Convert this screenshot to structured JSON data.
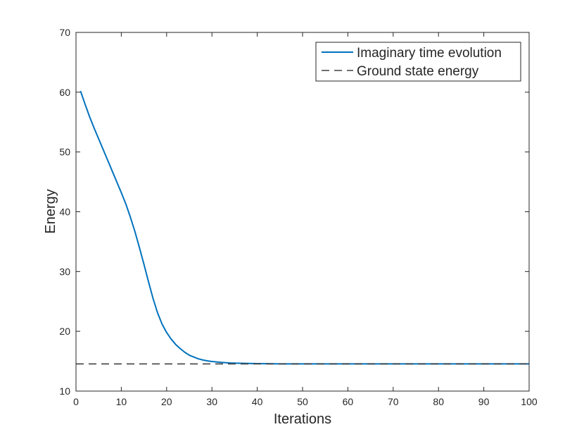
{
  "chart_data": {
    "type": "line",
    "title": "",
    "xlabel": "Iterations",
    "ylabel": "Energy",
    "xlim": [
      0,
      100
    ],
    "ylim": [
      10,
      70
    ],
    "xticks": [
      "0",
      "10",
      "20",
      "30",
      "40",
      "50",
      "60",
      "70",
      "80",
      "90",
      "100"
    ],
    "yticks": [
      "10",
      "20",
      "30",
      "40",
      "50",
      "60",
      "70"
    ],
    "grid": false,
    "legend_position": "top-right",
    "series": [
      {
        "name": "Imaginary time evolution",
        "style": "solid",
        "color": "#0072BD",
        "x": [
          1,
          2,
          3,
          4,
          5,
          6,
          7,
          8,
          9,
          10,
          11,
          12,
          13,
          14,
          15,
          16,
          17,
          18,
          19,
          20,
          21,
          22,
          23,
          24,
          25,
          26,
          27,
          28,
          29,
          30,
          32,
          34,
          36,
          38,
          40,
          42,
          45,
          50,
          60,
          70,
          80,
          90,
          100
        ],
        "y": [
          60.2,
          58.0,
          55.9,
          54.0,
          52.2,
          50.4,
          48.6,
          46.8,
          45.0,
          43.2,
          41.3,
          39.1,
          36.7,
          34.0,
          31.2,
          28.3,
          25.5,
          23.1,
          21.2,
          19.8,
          18.7,
          17.8,
          17.1,
          16.5,
          16.0,
          15.7,
          15.4,
          15.2,
          15.05,
          14.95,
          14.8,
          14.7,
          14.65,
          14.62,
          14.6,
          14.58,
          14.56,
          14.55,
          14.55,
          14.55,
          14.55,
          14.55,
          14.55
        ]
      },
      {
        "name": "Ground state energy",
        "style": "dashed",
        "color": "#404040",
        "x": [
          0,
          100
        ],
        "y": [
          14.55,
          14.55
        ]
      }
    ]
  }
}
